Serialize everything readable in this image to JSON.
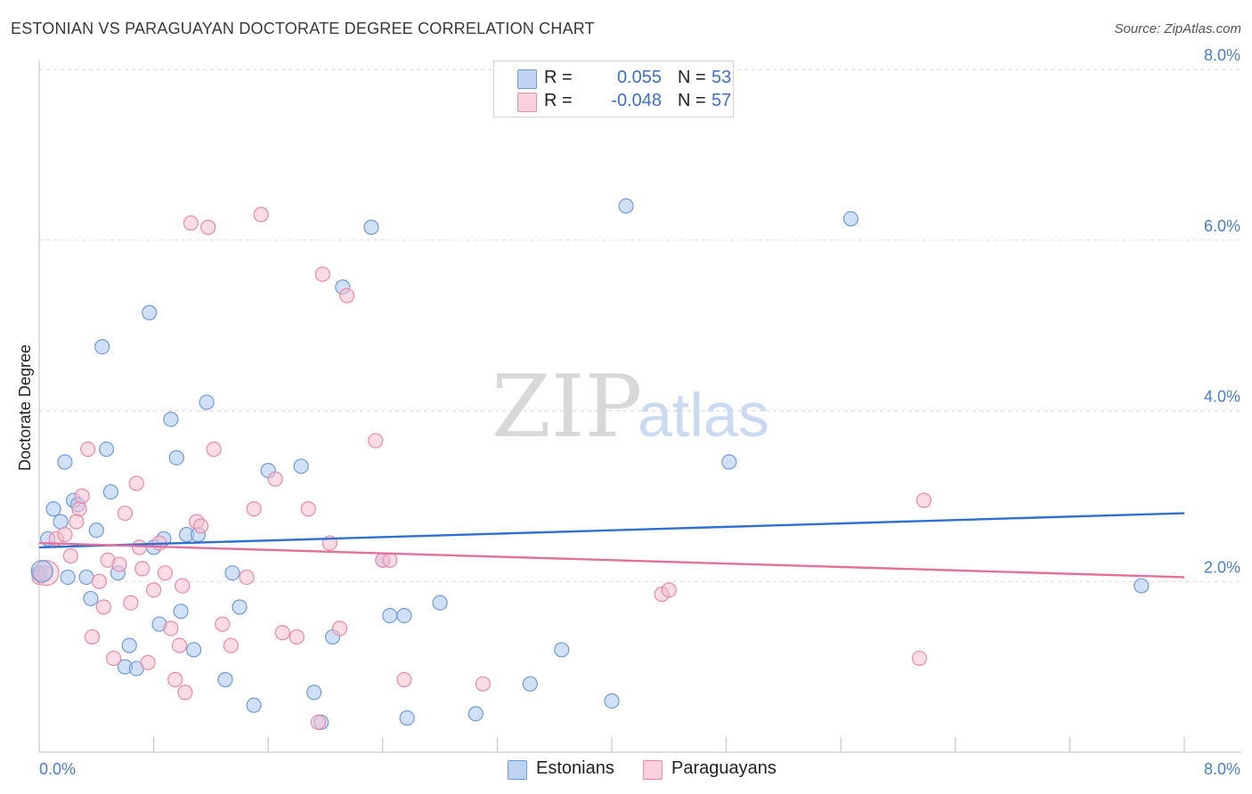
{
  "title": "ESTONIAN VS PARAGUAYAN DOCTORATE DEGREE CORRELATION CHART",
  "source": "Source: ZipAtlas.com",
  "watermark": {
    "zip": "ZIP",
    "atlas": "atlas"
  },
  "colors": {
    "blue_fill": "#a9c6ef",
    "blue_stroke": "#6f9bd8",
    "blue_line": "#2f6fcf",
    "pink_fill": "#f6bfd0",
    "pink_stroke": "#e88aa8",
    "pink_line": "#e3709a",
    "grid": "#d9d9d9",
    "axis": "#bfbfbf"
  },
  "legend": {
    "rows": [
      {
        "series": "Estonians",
        "r_label": "R =",
        "r_value": "0.055",
        "n_label": "N =",
        "n_value": "53"
      },
      {
        "series": "Paraguayans",
        "r_label": "R =",
        "r_value": "-0.048",
        "n_label": "N =",
        "n_value": "57"
      }
    ]
  },
  "bottom_legend": [
    "Estonians",
    "Paraguayans"
  ],
  "chart_data": {
    "type": "scatter",
    "title": "ESTONIAN VS PARAGUAYAN DOCTORATE DEGREE CORRELATION CHART",
    "xlabel": "",
    "ylabel": "Doctorate Degree",
    "xlim": [
      0,
      8
    ],
    "ylim": [
      0,
      8
    ],
    "x_tick_labels": [
      "0.0%",
      "8.0%"
    ],
    "y_tick_labels": [
      "2.0%",
      "4.0%",
      "6.0%",
      "8.0%"
    ],
    "y_ticks": [
      2,
      4,
      6,
      8
    ],
    "grid": true,
    "series": [
      {
        "name": "Estonians",
        "r": 0.055,
        "n": 53,
        "trend": {
          "x": [
            0,
            8
          ],
          "y": [
            2.4,
            2.8
          ]
        },
        "points": [
          [
            0.0,
            2.1
          ],
          [
            0.06,
            2.5
          ],
          [
            0.1,
            2.85
          ],
          [
            0.15,
            2.7
          ],
          [
            0.18,
            3.4
          ],
          [
            0.24,
            2.95
          ],
          [
            0.27,
            2.9
          ],
          [
            0.33,
            2.05
          ],
          [
            0.36,
            1.8
          ],
          [
            0.4,
            2.6
          ],
          [
            0.44,
            4.75
          ],
          [
            0.47,
            3.55
          ],
          [
            0.5,
            3.05
          ],
          [
            0.55,
            2.1
          ],
          [
            0.6,
            1.0
          ],
          [
            0.63,
            1.25
          ],
          [
            0.68,
            0.98
          ],
          [
            0.77,
            5.15
          ],
          [
            0.8,
            2.4
          ],
          [
            0.84,
            1.5
          ],
          [
            0.87,
            2.5
          ],
          [
            0.92,
            3.9
          ],
          [
            0.96,
            3.45
          ],
          [
            0.99,
            1.65
          ],
          [
            1.03,
            2.55
          ],
          [
            1.08,
            1.2
          ],
          [
            1.11,
            2.55
          ],
          [
            1.17,
            4.1
          ],
          [
            1.3,
            0.85
          ],
          [
            1.35,
            2.1
          ],
          [
            1.4,
            1.7
          ],
          [
            1.5,
            0.55
          ],
          [
            1.6,
            3.3
          ],
          [
            1.83,
            3.35
          ],
          [
            1.92,
            0.7
          ],
          [
            1.97,
            0.35
          ],
          [
            2.05,
            1.35
          ],
          [
            2.12,
            5.45
          ],
          [
            2.32,
            6.15
          ],
          [
            2.4,
            2.25
          ],
          [
            2.45,
            1.6
          ],
          [
            2.55,
            1.6
          ],
          [
            2.57,
            0.4
          ],
          [
            2.8,
            1.75
          ],
          [
            3.05,
            0.45
          ],
          [
            3.43,
            0.8
          ],
          [
            3.65,
            1.2
          ],
          [
            4.0,
            0.6
          ],
          [
            4.1,
            6.4
          ],
          [
            4.82,
            3.4
          ],
          [
            5.67,
            6.25
          ],
          [
            7.7,
            1.95
          ],
          [
            0.2,
            2.05
          ]
        ]
      },
      {
        "name": "Paraguayans",
        "r": -0.048,
        "n": 57,
        "trend": {
          "x": [
            0,
            8
          ],
          "y": [
            2.45,
            2.05
          ]
        },
        "points": [
          [
            0.0,
            2.05
          ],
          [
            0.04,
            2.1
          ],
          [
            0.12,
            2.5
          ],
          [
            0.18,
            2.55
          ],
          [
            0.22,
            2.3
          ],
          [
            0.28,
            2.85
          ],
          [
            0.3,
            3.0
          ],
          [
            0.34,
            3.55
          ],
          [
            0.37,
            1.35
          ],
          [
            0.42,
            2.0
          ],
          [
            0.45,
            1.7
          ],
          [
            0.48,
            2.25
          ],
          [
            0.52,
            1.1
          ],
          [
            0.56,
            2.2
          ],
          [
            0.6,
            2.8
          ],
          [
            0.64,
            1.75
          ],
          [
            0.68,
            3.15
          ],
          [
            0.72,
            2.15
          ],
          [
            0.76,
            1.05
          ],
          [
            0.8,
            1.9
          ],
          [
            0.84,
            2.45
          ],
          [
            0.88,
            2.1
          ],
          [
            0.92,
            1.45
          ],
          [
            0.95,
            0.85
          ],
          [
            0.98,
            1.25
          ],
          [
            1.02,
            0.7
          ],
          [
            1.06,
            6.2
          ],
          [
            1.1,
            2.7
          ],
          [
            1.13,
            2.65
          ],
          [
            1.18,
            6.15
          ],
          [
            1.22,
            3.55
          ],
          [
            1.28,
            1.5
          ],
          [
            1.34,
            1.25
          ],
          [
            1.5,
            2.85
          ],
          [
            1.55,
            6.3
          ],
          [
            1.65,
            3.2
          ],
          [
            1.7,
            1.4
          ],
          [
            1.8,
            1.35
          ],
          [
            1.88,
            2.85
          ],
          [
            1.95,
            0.35
          ],
          [
            1.98,
            5.6
          ],
          [
            2.03,
            2.45
          ],
          [
            2.1,
            1.45
          ],
          [
            2.15,
            5.35
          ],
          [
            2.35,
            3.65
          ],
          [
            2.4,
            2.25
          ],
          [
            2.45,
            2.25
          ],
          [
            2.55,
            0.85
          ],
          [
            3.1,
            0.8
          ],
          [
            4.35,
            1.85
          ],
          [
            4.4,
            1.9
          ],
          [
            6.15,
            1.1
          ],
          [
            6.18,
            2.95
          ],
          [
            1.0,
            1.95
          ],
          [
            0.7,
            2.4
          ],
          [
            1.45,
            2.05
          ],
          [
            0.26,
            2.7
          ]
        ]
      }
    ]
  }
}
